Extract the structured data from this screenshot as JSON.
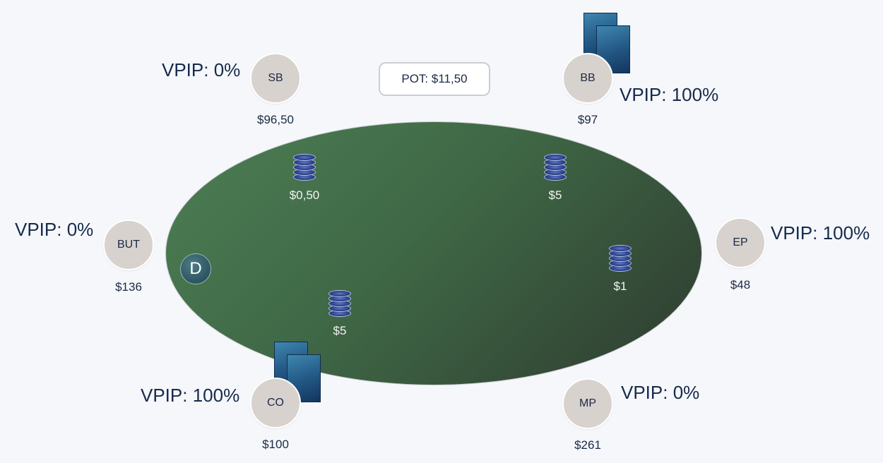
{
  "pot": {
    "label": "POT: $11,50"
  },
  "dealer_button": {
    "label": "D"
  },
  "seats": {
    "sb": {
      "position": "SB",
      "stack": "$96,50",
      "vpip": "VPIP: 0%"
    },
    "bb": {
      "position": "BB",
      "stack": "$97",
      "vpip": "VPIP: 100%"
    },
    "but": {
      "position": "BUT",
      "stack": "$136",
      "vpip": "VPIP: 0%"
    },
    "ep": {
      "position": "EP",
      "stack": "$48",
      "vpip": "VPIP: 100%"
    },
    "co": {
      "position": "CO",
      "stack": "$100",
      "vpip": "VPIP: 100%"
    },
    "mp": {
      "position": "MP",
      "stack": "$261",
      "vpip": "VPIP: 0%"
    }
  },
  "bets": {
    "sb": "$0,50",
    "bb": "$5",
    "co": "$5",
    "ep": "$1"
  },
  "colors": {
    "felt": "#3f6846",
    "seat": "#d8d2ce",
    "text": "#1b2a45",
    "card_back": "#245a87",
    "chip": "#2b3f86"
  }
}
